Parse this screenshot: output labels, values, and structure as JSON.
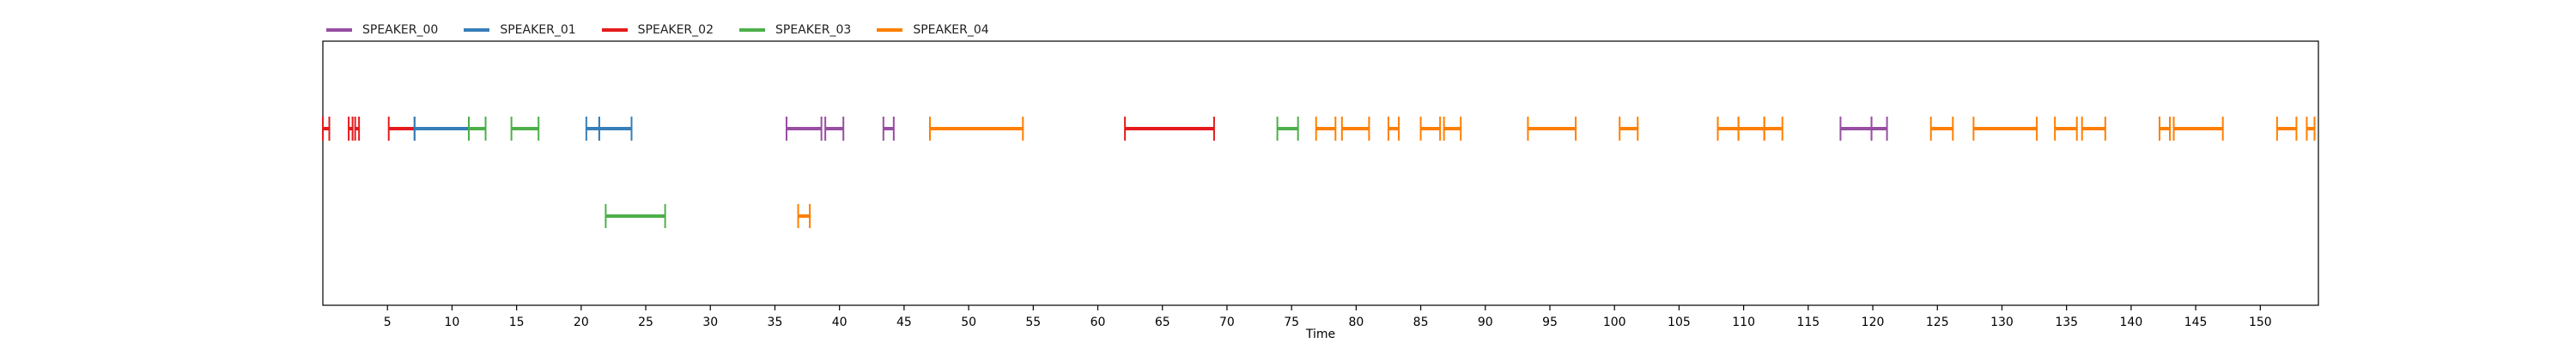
{
  "chart_data": {
    "type": "timeline",
    "title": "",
    "xlabel": "Time",
    "ylabel": "",
    "xlim": [
      0,
      154.5
    ],
    "xticks": [
      5,
      10,
      15,
      20,
      25,
      30,
      35,
      40,
      45,
      50,
      55,
      60,
      65,
      70,
      75,
      80,
      85,
      90,
      95,
      100,
      105,
      110,
      115,
      120,
      125,
      130,
      135,
      140,
      145,
      150
    ],
    "grid": false,
    "legend_position": "top-left",
    "series": [
      {
        "name": "SPEAKER_00",
        "color": "#984ea3"
      },
      {
        "name": "SPEAKER_01",
        "color": "#377eb8"
      },
      {
        "name": "SPEAKER_02",
        "color": "#e41a1c"
      },
      {
        "name": "SPEAKER_03",
        "color": "#4daf4a"
      },
      {
        "name": "SPEAKER_04",
        "color": "#ff7f00"
      }
    ],
    "segments": [
      {
        "speaker": "SPEAKER_02",
        "start": 0.0,
        "end": 0.5,
        "lane": 0
      },
      {
        "speaker": "SPEAKER_02",
        "start": 2.0,
        "end": 2.3,
        "lane": 0
      },
      {
        "speaker": "SPEAKER_02",
        "start": 2.5,
        "end": 2.8,
        "lane": 0
      },
      {
        "speaker": "SPEAKER_02",
        "start": 5.1,
        "end": 7.1,
        "lane": 0
      },
      {
        "speaker": "SPEAKER_01",
        "start": 7.1,
        "end": 11.3,
        "lane": 0
      },
      {
        "speaker": "SPEAKER_03",
        "start": 11.3,
        "end": 12.6,
        "lane": 0
      },
      {
        "speaker": "SPEAKER_03",
        "start": 14.6,
        "end": 16.7,
        "lane": 0
      },
      {
        "speaker": "SPEAKER_01",
        "start": 20.4,
        "end": 21.4,
        "lane": 0
      },
      {
        "speaker": "SPEAKER_01",
        "start": 21.4,
        "end": 23.9,
        "lane": 0
      },
      {
        "speaker": "SPEAKER_03",
        "start": 21.9,
        "end": 26.5,
        "lane": 1
      },
      {
        "speaker": "SPEAKER_00",
        "start": 35.9,
        "end": 38.6,
        "lane": 0
      },
      {
        "speaker": "SPEAKER_00",
        "start": 38.9,
        "end": 40.3,
        "lane": 0
      },
      {
        "speaker": "SPEAKER_04",
        "start": 36.8,
        "end": 37.7,
        "lane": 1
      },
      {
        "speaker": "SPEAKER_00",
        "start": 43.4,
        "end": 44.2,
        "lane": 0
      },
      {
        "speaker": "SPEAKER_04",
        "start": 47.0,
        "end": 54.2,
        "lane": 0
      },
      {
        "speaker": "SPEAKER_02",
        "start": 62.1,
        "end": 69.0,
        "lane": 0
      },
      {
        "speaker": "SPEAKER_03",
        "start": 73.9,
        "end": 75.5,
        "lane": 0
      },
      {
        "speaker": "SPEAKER_04",
        "start": 76.9,
        "end": 78.4,
        "lane": 0
      },
      {
        "speaker": "SPEAKER_04",
        "start": 78.9,
        "end": 81.0,
        "lane": 0
      },
      {
        "speaker": "SPEAKER_04",
        "start": 82.5,
        "end": 83.3,
        "lane": 0
      },
      {
        "speaker": "SPEAKER_04",
        "start": 85.0,
        "end": 86.5,
        "lane": 0
      },
      {
        "speaker": "SPEAKER_04",
        "start": 86.8,
        "end": 88.1,
        "lane": 0
      },
      {
        "speaker": "SPEAKER_04",
        "start": 93.3,
        "end": 97.0,
        "lane": 0
      },
      {
        "speaker": "SPEAKER_04",
        "start": 100.4,
        "end": 101.8,
        "lane": 0
      },
      {
        "speaker": "SPEAKER_04",
        "start": 108.0,
        "end": 109.6,
        "lane": 0
      },
      {
        "speaker": "SPEAKER_04",
        "start": 109.6,
        "end": 111.6,
        "lane": 0
      },
      {
        "speaker": "SPEAKER_04",
        "start": 111.6,
        "end": 113.0,
        "lane": 0
      },
      {
        "speaker": "SPEAKER_00",
        "start": 117.5,
        "end": 119.9,
        "lane": 0
      },
      {
        "speaker": "SPEAKER_00",
        "start": 119.9,
        "end": 121.1,
        "lane": 0
      },
      {
        "speaker": "SPEAKER_04",
        "start": 124.5,
        "end": 126.2,
        "lane": 0
      },
      {
        "speaker": "SPEAKER_04",
        "start": 127.8,
        "end": 132.7,
        "lane": 0
      },
      {
        "speaker": "SPEAKER_04",
        "start": 134.1,
        "end": 135.8,
        "lane": 0
      },
      {
        "speaker": "SPEAKER_04",
        "start": 136.2,
        "end": 138.0,
        "lane": 0
      },
      {
        "speaker": "SPEAKER_04",
        "start": 142.2,
        "end": 143.0,
        "lane": 0
      },
      {
        "speaker": "SPEAKER_04",
        "start": 143.3,
        "end": 147.1,
        "lane": 0
      },
      {
        "speaker": "SPEAKER_04",
        "start": 151.3,
        "end": 152.8,
        "lane": 0
      },
      {
        "speaker": "SPEAKER_04",
        "start": 153.6,
        "end": 154.2,
        "lane": 0
      }
    ]
  }
}
